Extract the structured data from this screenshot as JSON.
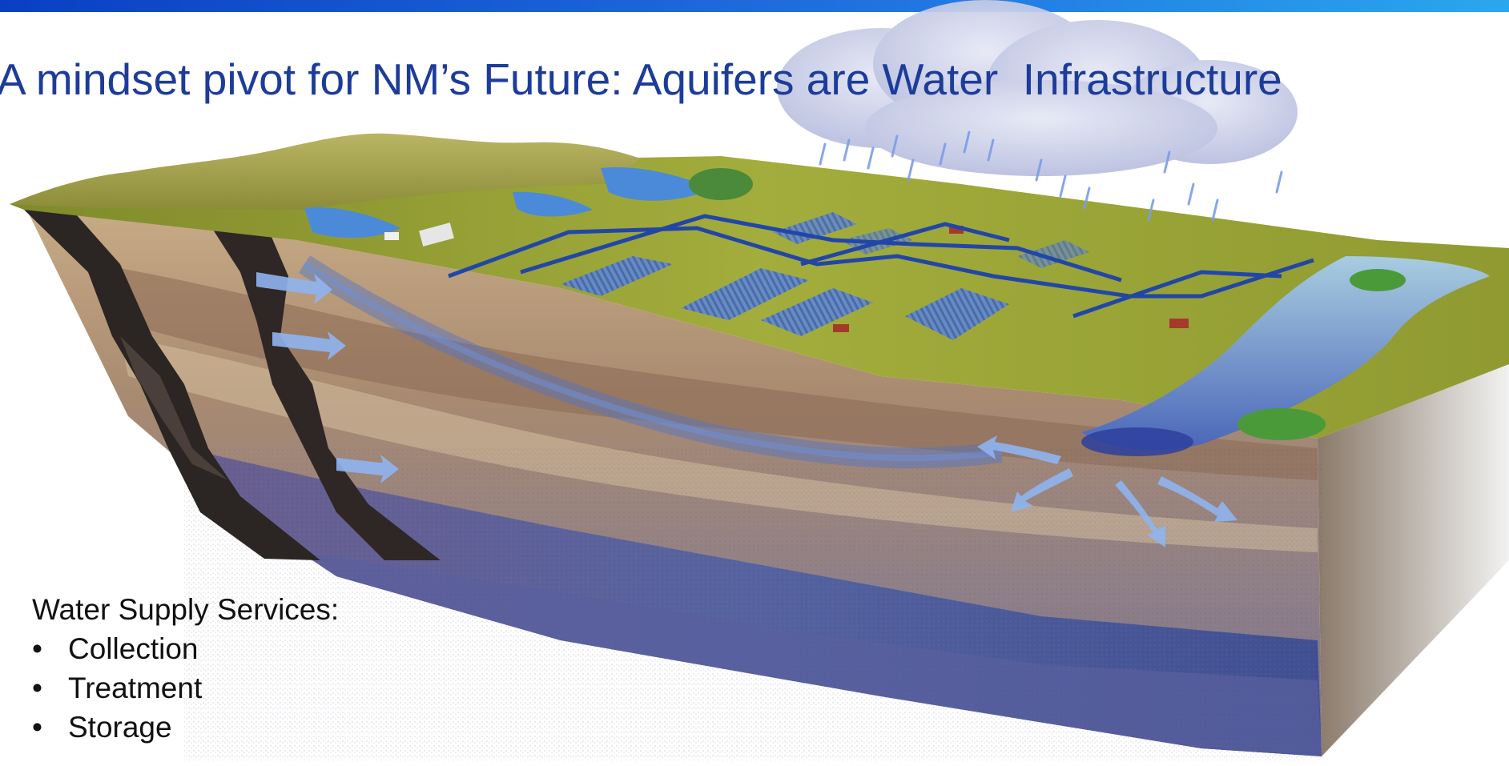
{
  "slide": {
    "title": "A mindset pivot for NM’s Future: Aquifers are Water  Infrastructure",
    "services_heading": "Water Supply Services:",
    "services": [
      "Collection",
      "Treatment",
      "Storage"
    ],
    "bullet": "•"
  },
  "colors": {
    "title": "#1d3c9a",
    "accent_bar_start": "#0a3fc4",
    "accent_bar_end": "#2aa7ee",
    "land_surface": "#9aa83a",
    "aquifer_deep": "#4a5a9e",
    "sediment": "#b89a78",
    "river": "#7fb4d6",
    "flow_arrows": "#8fb4ef"
  }
}
